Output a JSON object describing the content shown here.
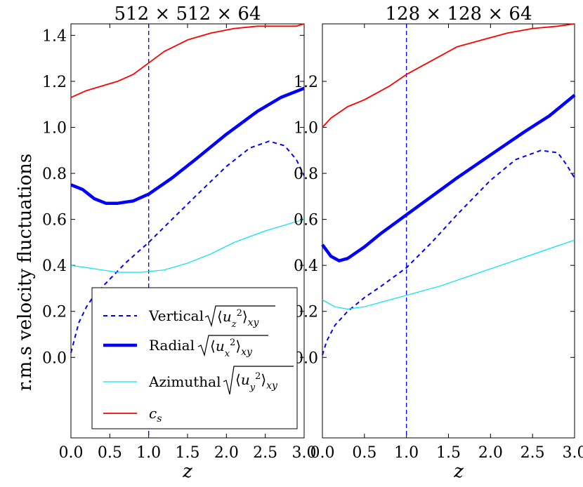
{
  "figure": {
    "ylabel": "r.m.s velocity fluctuations"
  },
  "legend": {
    "entries": [
      {
        "label": "Vertical",
        "formula_sub": "z"
      },
      {
        "label": "Radial",
        "formula_sub": "x"
      },
      {
        "label": "Azimuthal",
        "formula_sub": "y"
      },
      {
        "label": "c",
        "label_sub": "s"
      }
    ],
    "formula_suffix": "xy"
  },
  "chart_data": [
    {
      "type": "line",
      "title": "512 × 512 × 64",
      "xlabel": "z",
      "ylabel": "r.m.s velocity fluctuations",
      "xlim": [
        0,
        3
      ],
      "ylim": [
        -0.35,
        1.45
      ],
      "xticks": [
        "0.0",
        "0.5",
        "1.0",
        "1.5",
        "2.0",
        "2.5",
        "3.0"
      ],
      "yticks": [
        "0.0",
        "0.2",
        "0.4",
        "0.6",
        "0.8",
        "1.0",
        "1.2",
        "1.4"
      ],
      "vline_x": 1.0,
      "series": [
        {
          "name": "Vertical",
          "color": "#0000ff",
          "style": "dashed",
          "x": [
            0,
            0.1,
            0.2,
            0.3,
            0.5,
            0.7,
            1.0,
            1.3,
            1.6,
            2.0,
            2.3,
            2.55,
            2.75,
            2.9,
            3.0
          ],
          "y": [
            0.02,
            0.15,
            0.22,
            0.27,
            0.34,
            0.41,
            0.5,
            0.6,
            0.7,
            0.83,
            0.91,
            0.94,
            0.92,
            0.86,
            0.79
          ]
        },
        {
          "name": "Radial",
          "color": "#0000ff",
          "style": "thick",
          "x": [
            0,
            0.15,
            0.3,
            0.45,
            0.6,
            0.8,
            1.0,
            1.3,
            1.6,
            2.0,
            2.4,
            2.7,
            3.0
          ],
          "y": [
            0.75,
            0.73,
            0.69,
            0.67,
            0.67,
            0.68,
            0.71,
            0.78,
            0.86,
            0.97,
            1.07,
            1.13,
            1.17
          ]
        },
        {
          "name": "Azimuthal",
          "color": "#00e5ee",
          "style": "thin",
          "x": [
            0,
            0.2,
            0.4,
            0.6,
            0.9,
            1.2,
            1.5,
            1.8,
            2.1,
            2.5,
            3.0
          ],
          "y": [
            0.4,
            0.39,
            0.38,
            0.37,
            0.37,
            0.38,
            0.41,
            0.45,
            0.5,
            0.55,
            0.6
          ]
        },
        {
          "name": "c_s",
          "color": "#ff0000",
          "style": "normal",
          "x": [
            0,
            0.2,
            0.4,
            0.6,
            0.8,
            1.0,
            1.2,
            1.5,
            1.8,
            2.1,
            2.4,
            2.7,
            2.9,
            3.0
          ],
          "y": [
            1.13,
            1.16,
            1.18,
            1.2,
            1.23,
            1.28,
            1.33,
            1.38,
            1.41,
            1.43,
            1.44,
            1.44,
            1.44,
            1.45
          ]
        }
      ]
    },
    {
      "type": "line",
      "title": "128 × 128 × 64",
      "xlabel": "z",
      "xlim": [
        0,
        3
      ],
      "ylim": [
        -0.35,
        1.45
      ],
      "xticks": [
        "0.0",
        "0.5",
        "1.0",
        "1.5",
        "2.0",
        "2.5",
        "3.0"
      ],
      "yticks": [
        "0.0",
        "0.2",
        "0.4",
        "0.6",
        "0.8",
        "1.0",
        "1.2"
      ],
      "vline_x": 1.0,
      "series": [
        {
          "name": "Vertical",
          "color": "#0000ff",
          "style": "dashed",
          "x": [
            0,
            0.05,
            0.15,
            0.3,
            0.5,
            0.7,
            1.0,
            1.3,
            1.6,
            2.0,
            2.3,
            2.6,
            2.8,
            2.9,
            3.0
          ],
          "y": [
            0.01,
            0.07,
            0.14,
            0.2,
            0.26,
            0.31,
            0.39,
            0.5,
            0.62,
            0.77,
            0.86,
            0.9,
            0.89,
            0.84,
            0.78
          ]
        },
        {
          "name": "Radial",
          "color": "#0000ff",
          "style": "thick",
          "x": [
            0,
            0.1,
            0.2,
            0.3,
            0.5,
            0.7,
            1.0,
            1.3,
            1.6,
            2.0,
            2.4,
            2.7,
            3.0
          ],
          "y": [
            0.49,
            0.44,
            0.42,
            0.43,
            0.48,
            0.54,
            0.62,
            0.7,
            0.78,
            0.88,
            0.98,
            1.05,
            1.14
          ]
        },
        {
          "name": "Azimuthal",
          "color": "#00e5ee",
          "style": "thin",
          "x": [
            0,
            0.15,
            0.3,
            0.5,
            0.8,
            1.0,
            1.4,
            1.8,
            2.2,
            2.6,
            3.0
          ],
          "y": [
            0.25,
            0.22,
            0.21,
            0.22,
            0.25,
            0.27,
            0.31,
            0.36,
            0.41,
            0.46,
            0.51
          ]
        },
        {
          "name": "c_s",
          "color": "#ff0000",
          "style": "normal",
          "x": [
            0,
            0.1,
            0.3,
            0.5,
            0.8,
            1.0,
            1.3,
            1.6,
            1.9,
            2.2,
            2.5,
            2.8,
            3.0
          ],
          "y": [
            1.0,
            1.04,
            1.09,
            1.12,
            1.18,
            1.23,
            1.29,
            1.35,
            1.38,
            1.41,
            1.43,
            1.44,
            1.45
          ]
        }
      ]
    }
  ]
}
